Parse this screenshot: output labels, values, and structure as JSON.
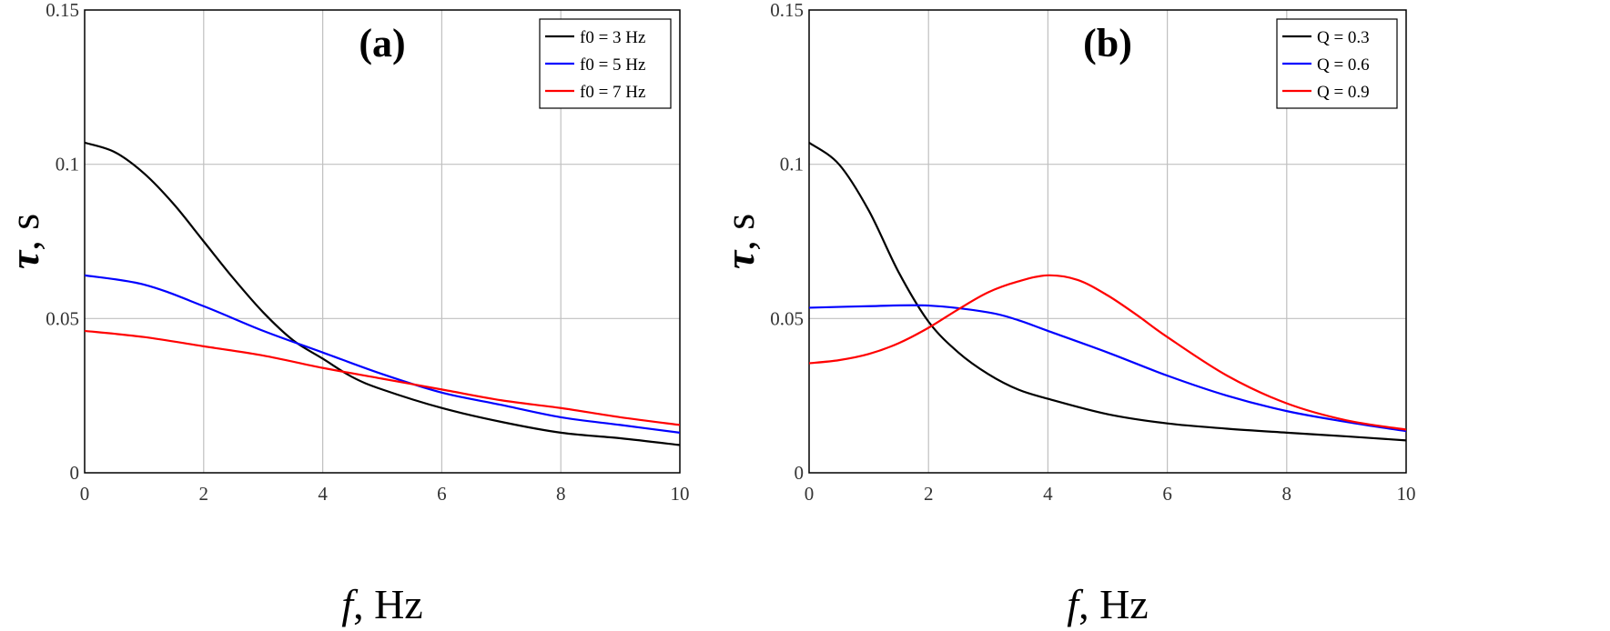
{
  "colors": {
    "black": "#000000",
    "blue": "#0000ff",
    "red": "#ff0000",
    "grid": "#c0c0c0"
  },
  "chart_data": [
    {
      "type": "line",
      "panel_label": "(a)",
      "xlabel_italic": "f",
      "xlabel_rest": ", Hz",
      "ylabel_italic": "τ",
      "ylabel_rest": ", s",
      "xlim": [
        0,
        10
      ],
      "ylim": [
        0,
        0.15
      ],
      "xticks": [
        "0",
        "2",
        "4",
        "6",
        "8",
        "10"
      ],
      "yticks": [
        "0",
        "0.05",
        "0.1",
        "0.15"
      ],
      "grid": true,
      "legend_position": "top-right",
      "series": [
        {
          "name": "f0 = 3 Hz",
          "color": "#000000",
          "x": [
            0,
            0.5,
            1,
            1.5,
            2,
            2.5,
            3,
            3.5,
            4,
            4.5,
            5,
            6,
            7,
            8,
            9,
            10
          ],
          "y": [
            0.107,
            0.104,
            0.097,
            0.087,
            0.075,
            0.063,
            0.052,
            0.043,
            0.037,
            0.031,
            0.027,
            0.021,
            0.0165,
            0.013,
            0.0112,
            0.009
          ]
        },
        {
          "name": "f0 = 5 Hz",
          "color": "#0000ff",
          "x": [
            0,
            1,
            2,
            3,
            4,
            5,
            6,
            7,
            8,
            9,
            10
          ],
          "y": [
            0.064,
            0.061,
            0.054,
            0.046,
            0.039,
            0.032,
            0.026,
            0.022,
            0.018,
            0.0155,
            0.013
          ]
        },
        {
          "name": "f0 = 7 Hz",
          "color": "#ff0000",
          "x": [
            0,
            1,
            2,
            3,
            4,
            5,
            6,
            7,
            8,
            9,
            10
          ],
          "y": [
            0.046,
            0.044,
            0.041,
            0.038,
            0.034,
            0.0305,
            0.027,
            0.0235,
            0.021,
            0.018,
            0.0155
          ]
        }
      ]
    },
    {
      "type": "line",
      "panel_label": "(b)",
      "xlabel_italic": "f",
      "xlabel_rest": ", Hz",
      "ylabel_italic": "τ",
      "ylabel_rest": ", s",
      "xlim": [
        0,
        10
      ],
      "ylim": [
        0,
        0.15
      ],
      "xticks": [
        "0",
        "2",
        "4",
        "6",
        "8",
        "10"
      ],
      "yticks": [
        "0",
        "0.05",
        "0.1",
        "0.15"
      ],
      "grid": true,
      "legend_position": "top-right",
      "series": [
        {
          "name": "Q = 0.3",
          "color": "#000000",
          "x": [
            0,
            0.5,
            1,
            1.5,
            2,
            2.5,
            3,
            3.5,
            4,
            5,
            6,
            7,
            8,
            9,
            10
          ],
          "y": [
            0.107,
            0.1,
            0.085,
            0.065,
            0.049,
            0.039,
            0.032,
            0.027,
            0.024,
            0.019,
            0.016,
            0.0143,
            0.013,
            0.0118,
            0.0105
          ]
        },
        {
          "name": "Q = 0.6",
          "color": "#0000ff",
          "x": [
            0,
            1,
            2,
            3,
            3.5,
            4,
            5,
            6,
            7,
            8,
            9,
            10
          ],
          "y": [
            0.0535,
            0.054,
            0.0542,
            0.052,
            0.0495,
            0.046,
            0.039,
            0.0315,
            0.025,
            0.02,
            0.0165,
            0.0135
          ]
        },
        {
          "name": "Q = 0.9",
          "color": "#ff0000",
          "x": [
            0,
            0.5,
            1,
            1.5,
            2,
            2.5,
            3,
            3.5,
            4,
            4.5,
            5,
            5.5,
            6,
            7,
            8,
            9,
            10
          ],
          "y": [
            0.0355,
            0.0365,
            0.0385,
            0.042,
            0.047,
            0.053,
            0.0585,
            0.062,
            0.064,
            0.0625,
            0.0575,
            0.051,
            0.044,
            0.0315,
            0.0225,
            0.017,
            0.014
          ]
        }
      ]
    }
  ]
}
